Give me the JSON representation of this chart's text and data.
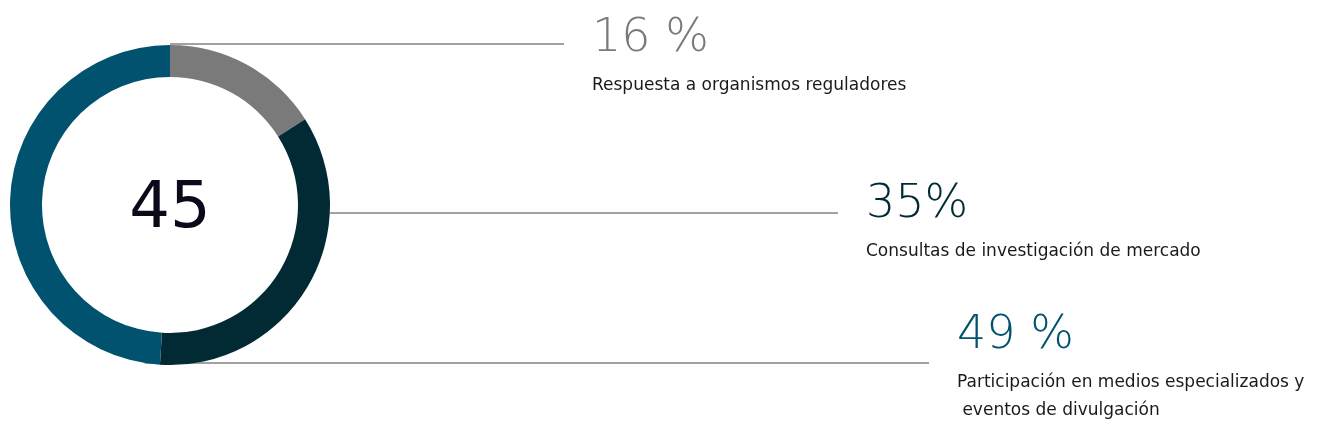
{
  "chart_data": {
    "type": "donut",
    "categories": [
      "Respuesta a organismos reguladores",
      "Consultas de investigación de mercado",
      "Participación en medios especializados y eventos de divulgación"
    ],
    "values": [
      16,
      35,
      49
    ],
    "colors": [
      "#7a7a7a",
      "#012a35",
      "#00526f"
    ],
    "value_labels": [
      "16 %",
      "35%",
      "49 %"
    ],
    "annotations": [
      "45"
    ]
  }
}
